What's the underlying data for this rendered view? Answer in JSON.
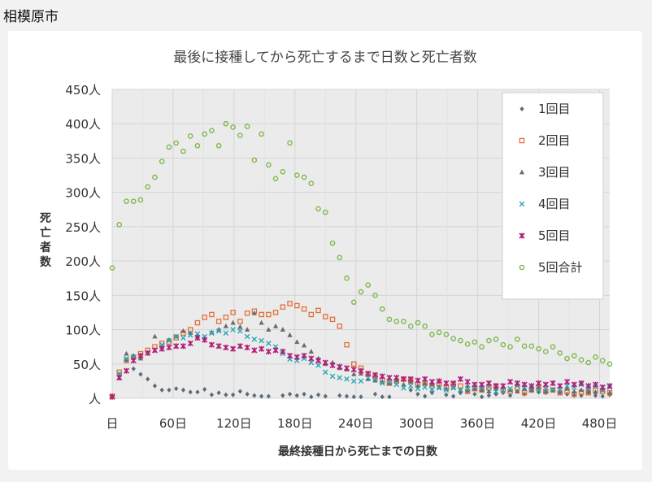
{
  "header": {
    "city": "相模原市"
  },
  "chart_data": {
    "type": "scatter",
    "title": "最後に接種してから死亡するまで日数と死亡者数",
    "xlabel": "最終接種日から死亡までの日数",
    "ylabel": "死亡者数",
    "xlim": [
      0,
      490
    ],
    "ylim": [
      0,
      450
    ],
    "x_ticks": [
      0,
      60,
      120,
      180,
      240,
      300,
      360,
      420,
      480
    ],
    "x_tick_labels": [
      "日",
      "60日",
      "120日",
      "180日",
      "240日",
      "300日",
      "360日",
      "420日",
      "480日"
    ],
    "y_ticks": [
      0,
      50,
      100,
      150,
      200,
      250,
      300,
      350,
      400,
      450
    ],
    "y_tick_labels": [
      "人",
      "50人",
      "100人",
      "150人",
      "200人",
      "250人",
      "300人",
      "350人",
      "400人",
      "450人"
    ],
    "grid": true,
    "legend_position": "top-right",
    "series": [
      {
        "name": "1回目",
        "marker": "diamond",
        "color": "#5b6b7a",
        "x": [
          0,
          7,
          14,
          21,
          28,
          35,
          42,
          49,
          56,
          63,
          70,
          77,
          84,
          91,
          98,
          105,
          112,
          119,
          126,
          133,
          140,
          147,
          154,
          168,
          175,
          182,
          189,
          196,
          203,
          210,
          224,
          231,
          238,
          245,
          259,
          266,
          273,
          294,
          301,
          308,
          315,
          329,
          336,
          343,
          350,
          357,
          364,
          371,
          378,
          385,
          392,
          399,
          406,
          413,
          420,
          427,
          434,
          441,
          448,
          455,
          462,
          469,
          476,
          483,
          490
        ],
        "y": [
          3,
          35,
          55,
          43,
          35,
          28,
          18,
          12,
          12,
          14,
          12,
          9,
          9,
          13,
          5,
          8,
          5,
          5,
          10,
          6,
          4,
          3,
          3,
          4,
          6,
          4,
          6,
          2,
          5,
          3,
          4,
          3,
          2,
          2,
          6,
          2,
          2,
          12,
          6,
          3,
          8,
          5,
          3,
          8,
          10,
          6,
          2,
          4,
          6,
          8,
          4,
          10,
          6,
          12,
          9,
          8,
          12,
          8,
          6,
          4,
          4,
          8,
          4,
          3,
          5
        ]
      },
      {
        "name": "2回目",
        "marker": "square",
        "color": "#e2703a",
        "x": [
          0,
          7,
          14,
          21,
          28,
          35,
          42,
          49,
          56,
          63,
          70,
          77,
          84,
          91,
          98,
          105,
          112,
          119,
          126,
          133,
          140,
          147,
          154,
          161,
          168,
          175,
          182,
          189,
          196,
          203,
          210,
          217,
          224,
          231,
          238,
          245,
          252,
          259,
          266,
          273,
          280,
          287,
          294,
          301,
          308,
          315,
          322,
          329,
          336,
          343,
          350,
          357,
          364,
          371,
          378,
          385,
          392,
          399,
          406,
          413,
          420,
          427,
          434,
          441,
          448,
          455,
          462,
          469,
          476,
          483,
          490
        ],
        "y": [
          3,
          38,
          55,
          60,
          65,
          70,
          75,
          80,
          82,
          88,
          95,
          100,
          110,
          118,
          122,
          112,
          118,
          125,
          112,
          124,
          127,
          122,
          122,
          125,
          133,
          138,
          135,
          130,
          122,
          128,
          119,
          115,
          105,
          78,
          50,
          44,
          35,
          31,
          26,
          22,
          25,
          28,
          26,
          20,
          22,
          18,
          22,
          15,
          20,
          18,
          10,
          14,
          12,
          15,
          18,
          12,
          10,
          15,
          8,
          12,
          15,
          10,
          12,
          8,
          10,
          6,
          9,
          8,
          12,
          10,
          8
        ],
        "show_every": 1
      },
      {
        "name": "3回目",
        "marker": "triangle",
        "color": "#6b6b6b",
        "x": [
          0,
          7,
          14,
          21,
          28,
          35,
          42,
          49,
          56,
          63,
          70,
          77,
          84,
          91,
          98,
          105,
          112,
          119,
          126,
          133,
          140,
          147,
          154,
          161,
          168,
          175,
          182,
          189,
          196,
          203,
          210,
          217,
          224,
          231,
          238,
          245,
          252,
          259,
          266,
          273,
          280,
          287,
          294,
          301,
          308,
          315,
          322,
          329,
          336,
          343,
          350,
          357,
          364,
          371,
          378,
          385,
          392,
          399,
          406,
          413,
          420,
          427,
          434,
          441,
          448,
          455,
          462,
          469,
          476,
          483,
          490
        ],
        "y": [
          2,
          30,
          65,
          62,
          58,
          66,
          90,
          75,
          85,
          90,
          98,
          95,
          90,
          88,
          96,
          100,
          105,
          110,
          104,
          100,
          124,
          110,
          100,
          105,
          100,
          92,
          82,
          77,
          68,
          58,
          50,
          52,
          44,
          42,
          35,
          36,
          28,
          26,
          24,
          22,
          26,
          20,
          24,
          18,
          22,
          20,
          16,
          14,
          16,
          12,
          18,
          14,
          12,
          10,
          14,
          16,
          12,
          10,
          14,
          12,
          16,
          10,
          12,
          10,
          14,
          10,
          12,
          10,
          9,
          12,
          8
        ]
      },
      {
        "name": "4回目",
        "marker": "x",
        "color": "#2aa7b8",
        "x": [
          0,
          7,
          14,
          21,
          28,
          35,
          42,
          49,
          56,
          63,
          70,
          77,
          84,
          91,
          98,
          105,
          112,
          119,
          126,
          133,
          140,
          147,
          154,
          161,
          168,
          175,
          182,
          189,
          196,
          203,
          210,
          217,
          224,
          231,
          238,
          245,
          252,
          259,
          266,
          273,
          280,
          287,
          294,
          301,
          308,
          315,
          322,
          329,
          336,
          343,
          350,
          357,
          364,
          371,
          378,
          385,
          392,
          399,
          406,
          413,
          420,
          427,
          434,
          441,
          448,
          455,
          462,
          469,
          476,
          483,
          490
        ],
        "y": [
          2,
          35,
          58,
          60,
          62,
          66,
          70,
          78,
          84,
          90,
          88,
          92,
          94,
          90,
          95,
          98,
          95,
          100,
          98,
          90,
          86,
          84,
          80,
          75,
          65,
          57,
          55,
          58,
          52,
          48,
          38,
          32,
          30,
          28,
          25,
          25,
          30,
          28,
          22,
          24,
          20,
          15,
          18,
          14,
          16,
          13,
          15,
          12,
          15,
          12,
          14,
          16,
          15,
          17,
          10,
          12,
          14,
          18,
          16,
          15,
          12,
          14,
          13,
          12,
          18,
          16,
          20,
          15,
          17,
          12,
          16
        ]
      },
      {
        "name": "5回目",
        "marker": "star",
        "color": "#b0207a",
        "x": [
          0,
          7,
          14,
          21,
          28,
          35,
          42,
          49,
          56,
          63,
          70,
          77,
          84,
          91,
          98,
          105,
          112,
          119,
          126,
          133,
          140,
          147,
          154,
          161,
          168,
          175,
          182,
          189,
          196,
          203,
          210,
          217,
          224,
          231,
          238,
          245,
          252,
          259,
          266,
          273,
          280,
          287,
          294,
          301,
          308,
          315,
          322,
          329,
          336,
          343,
          350,
          357,
          364,
          371,
          378,
          385,
          392,
          399,
          406,
          413,
          420,
          427,
          434,
          441,
          448,
          455,
          462,
          469,
          476,
          483,
          490
        ],
        "y": [
          2,
          30,
          40,
          55,
          62,
          66,
          70,
          72,
          74,
          76,
          76,
          80,
          88,
          85,
          78,
          76,
          74,
          72,
          76,
          74,
          70,
          72,
          68,
          70,
          68,
          62,
          60,
          62,
          58,
          55,
          52,
          48,
          46,
          44,
          42,
          40,
          36,
          34,
          32,
          30,
          30,
          28,
          28,
          26,
          28,
          24,
          25,
          22,
          22,
          28,
          24,
          20,
          20,
          22,
          18,
          18,
          24,
          22,
          20,
          18,
          22,
          20,
          22,
          18,
          24,
          20,
          22,
          18,
          20,
          16,
          18
        ]
      },
      {
        "name": "5回合計",
        "marker": "circle",
        "color": "#7db84e",
        "x": [
          0,
          7,
          14,
          21,
          28,
          35,
          42,
          49,
          56,
          63,
          70,
          77,
          84,
          91,
          98,
          105,
          112,
          119,
          126,
          133,
          140,
          147,
          154,
          161,
          168,
          175,
          182,
          189,
          196,
          203,
          210,
          217,
          224,
          231,
          238,
          245,
          252,
          259,
          266,
          273,
          280,
          287,
          294,
          301,
          308,
          315,
          322,
          329,
          336,
          343,
          350,
          357,
          364,
          371,
          378,
          385,
          392,
          399,
          406,
          413,
          420,
          427,
          434,
          441,
          448,
          455,
          462,
          469,
          476,
          483,
          490
        ],
        "y": [
          190,
          253,
          287,
          287,
          289,
          308,
          322,
          345,
          366,
          372,
          360,
          382,
          368,
          385,
          390,
          368,
          400,
          395,
          383,
          396,
          347,
          385,
          340,
          320,
          330,
          372,
          325,
          322,
          313,
          276,
          271,
          226,
          205,
          175,
          140,
          155,
          165,
          150,
          130,
          115,
          112,
          112,
          105,
          110,
          105,
          93,
          96,
          93,
          87,
          84,
          79,
          82,
          75,
          84,
          86,
          78,
          75,
          86,
          76,
          76,
          72,
          68,
          75,
          66,
          58,
          62,
          56,
          52,
          60,
          55,
          50
        ]
      }
    ]
  }
}
